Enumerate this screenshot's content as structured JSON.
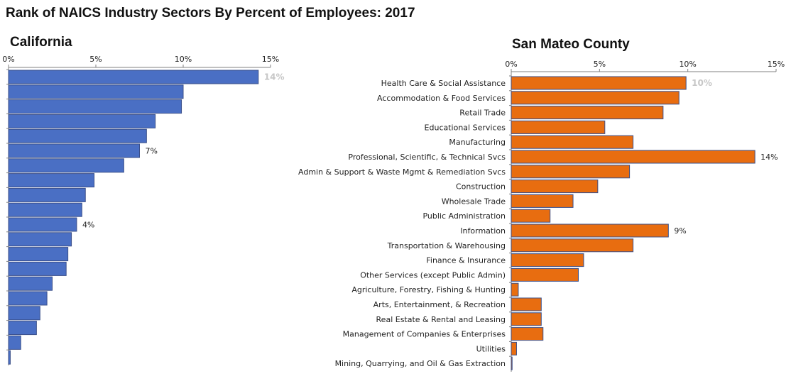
{
  "title": "Rank of NAICS Industry Sectors By Percent of Employees: 2017",
  "colors": {
    "california": "#4a6fc4",
    "san_mateo": "#e86d10",
    "bar_stroke": "#3a4f8a",
    "highlight_label": "#c7c7c7",
    "axis": "#808080"
  },
  "chart_data": [
    {
      "type": "bar",
      "orientation": "horizontal",
      "subtitle": "California",
      "xlim": [
        0,
        15
      ],
      "x_ticks": [
        "0%",
        "5%",
        "10%",
        "15%"
      ],
      "values": [
        14.3,
        10.0,
        9.9,
        8.4,
        7.9,
        7.5,
        6.6,
        4.9,
        4.4,
        4.2,
        3.9,
        3.6,
        3.4,
        3.3,
        2.5,
        2.2,
        1.8,
        1.6,
        0.7,
        0.1
      ],
      "data_labels": [
        {
          "index": 0,
          "text": "14%",
          "highlight": true
        },
        {
          "index": 5,
          "text": "7%",
          "highlight": false
        },
        {
          "index": 10,
          "text": "4%",
          "highlight": false
        }
      ]
    },
    {
      "type": "bar",
      "orientation": "horizontal",
      "subtitle": "San Mateo County",
      "xlim": [
        0,
        15
      ],
      "x_ticks": [
        "0%",
        "5%",
        "10%",
        "15%"
      ],
      "categories": [
        "Health Care & Social Assistance",
        "Accommodation & Food Services",
        "Retail Trade",
        "Educational Services",
        "Manufacturing",
        "Professional, Scientific, & Technical Svcs",
        "Admin & Support & Waste Mgmt & Remediation Svcs",
        "Construction",
        "Wholesale Trade",
        "Public Administration",
        "Information",
        "Transportation & Warehousing",
        "Finance & Insurance",
        "Other Services (except Public Admin)",
        "Agriculture, Forestry, Fishing & Hunting",
        "Arts, Entertainment, & Recreation",
        "Real Estate & Rental and Leasing",
        "Management of Companies & Enterprises",
        "Utilities",
        "Mining, Quarrying, and Oil & Gas Extraction"
      ],
      "values": [
        9.9,
        9.5,
        8.6,
        5.3,
        6.9,
        13.8,
        6.7,
        4.9,
        3.5,
        2.2,
        8.9,
        6.9,
        4.1,
        3.8,
        0.4,
        1.7,
        1.7,
        1.8,
        0.3,
        0.05
      ],
      "data_labels": [
        {
          "index": 0,
          "text": "10%",
          "highlight": true
        },
        {
          "index": 5,
          "text": "14%",
          "highlight": false
        },
        {
          "index": 10,
          "text": "9%",
          "highlight": false
        }
      ]
    }
  ]
}
